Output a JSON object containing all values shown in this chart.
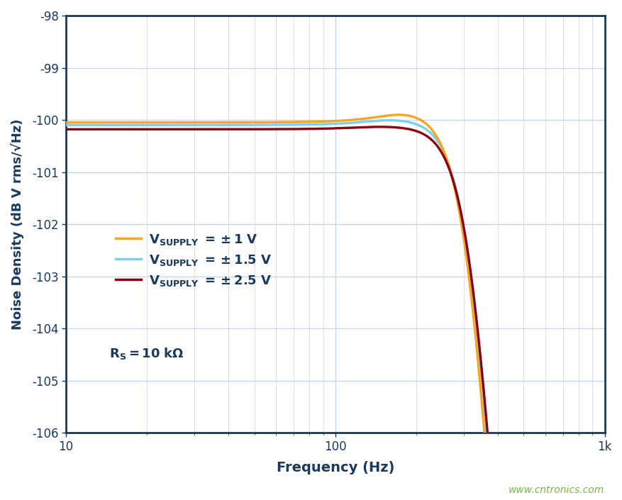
{
  "title": "",
  "xlabel": "Frequency (Hz)",
  "ylabel": "Noise Density (dB V rms/√Hz)",
  "xlim": [
    10,
    1000
  ],
  "ylim": [
    -106,
    -98
  ],
  "yticks": [
    -106,
    -105,
    -104,
    -103,
    -102,
    -101,
    -100,
    -99,
    -98
  ],
  "background_color": "#ffffff",
  "grid_color": "#c5d5e5",
  "axis_color": "#1a3a5c",
  "label_color": "#1a3a5c",
  "line_colors": [
    "#f5a623",
    "#7ecfed",
    "#8b0010"
  ],
  "watermark": "www.cntronics.com",
  "watermark_color": "#7ab648",
  "plot_bg": "#ffffff"
}
